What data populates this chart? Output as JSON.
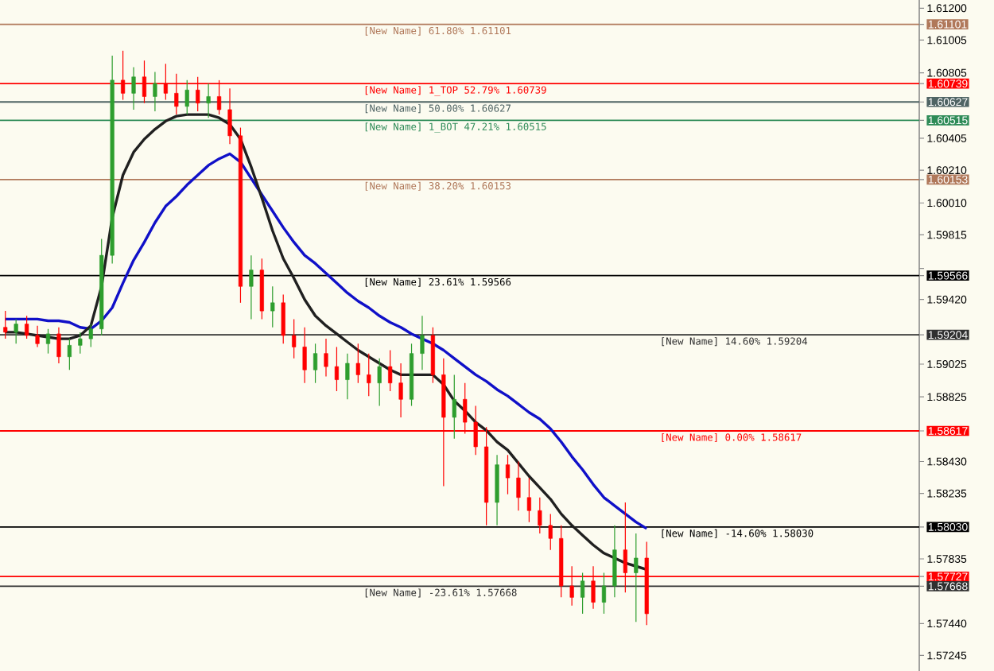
{
  "chart_data": {
    "type": "candlestick",
    "categories": [
      null,
      null,
      null,
      null,
      null,
      null,
      null,
      null,
      null,
      null,
      null,
      null,
      null,
      null,
      null,
      null,
      null,
      null,
      null,
      null,
      null,
      null,
      null,
      null,
      null,
      null,
      null,
      null,
      null,
      null,
      null,
      null,
      null,
      null,
      null,
      null,
      null,
      null,
      null,
      null,
      null,
      null,
      null,
      null,
      null,
      null,
      null,
      null,
      null,
      null,
      null,
      null,
      null,
      null,
      null,
      null,
      null,
      null,
      null,
      null,
      null,
      null,
      null,
      null,
      null,
      null,
      null,
      null,
      null,
      null,
      null,
      null,
      null,
      null,
      null,
      null,
      null,
      null,
      null,
      null,
      null,
      null,
      null,
      null,
      null,
      null
    ],
    "ohlc": [
      [
        1.5925,
        1.5935,
        1.5918,
        1.5922
      ],
      [
        1.5922,
        1.593,
        1.5915,
        1.5927
      ],
      [
        1.5927,
        1.5932,
        1.5918,
        1.592
      ],
      [
        1.592,
        1.5926,
        1.5913,
        1.5915
      ],
      [
        1.5915,
        1.5924,
        1.5909,
        1.5921
      ],
      [
        1.5921,
        1.5925,
        1.5903,
        1.5907
      ],
      [
        1.5907,
        1.5918,
        1.5899,
        1.5914
      ],
      [
        1.5914,
        1.5922,
        1.5909,
        1.5918
      ],
      [
        1.5918,
        1.5927,
        1.5913,
        1.5924
      ],
      [
        1.5924,
        1.5979,
        1.592,
        1.5969
      ],
      [
        1.5969,
        1.6091,
        1.5964,
        1.6076
      ],
      [
        1.6076,
        1.6094,
        1.6064,
        1.6068
      ],
      [
        1.6068,
        1.6084,
        1.6058,
        1.6078
      ],
      [
        1.6078,
        1.6088,
        1.6062,
        1.6066
      ],
      [
        1.6066,
        1.6081,
        1.6057,
        1.6074
      ],
      [
        1.6074,
        1.6086,
        1.6064,
        1.6068
      ],
      [
        1.6068,
        1.608,
        1.6055,
        1.606
      ],
      [
        1.606,
        1.6076,
        1.6055,
        1.607
      ],
      [
        1.607,
        1.6078,
        1.6057,
        1.6062
      ],
      [
        1.6062,
        1.6074,
        1.6053,
        1.6066
      ],
      [
        1.6066,
        1.6076,
        1.6055,
        1.6058
      ],
      [
        1.6058,
        1.6071,
        1.6037,
        1.6042
      ],
      [
        1.6042,
        1.6047,
        1.594,
        1.595
      ],
      [
        1.595,
        1.5969,
        1.593,
        1.596
      ],
      [
        1.596,
        1.5967,
        1.593,
        1.5935
      ],
      [
        1.5935,
        1.595,
        1.5925,
        1.594
      ],
      [
        1.594,
        1.5945,
        1.5915,
        1.592
      ],
      [
        1.592,
        1.593,
        1.5906,
        1.5913
      ],
      [
        1.5913,
        1.5925,
        1.5891,
        1.5899
      ],
      [
        1.5899,
        1.5915,
        1.5891,
        1.5909
      ],
      [
        1.5909,
        1.5918,
        1.5895,
        1.5901
      ],
      [
        1.5901,
        1.5913,
        1.5886,
        1.5893
      ],
      [
        1.5893,
        1.5909,
        1.5881,
        1.5903
      ],
      [
        1.5903,
        1.5915,
        1.5891,
        1.5896
      ],
      [
        1.5896,
        1.5909,
        1.5883,
        1.5891
      ],
      [
        1.5891,
        1.5906,
        1.5877,
        1.5901
      ],
      [
        1.5901,
        1.5911,
        1.5886,
        1.5891
      ],
      [
        1.5891,
        1.5903,
        1.587,
        1.5881
      ],
      [
        1.5881,
        1.5915,
        1.5877,
        1.5909
      ],
      [
        1.5909,
        1.5932,
        1.5899,
        1.592
      ],
      [
        1.592,
        1.5925,
        1.5891,
        1.5896
      ],
      [
        1.5896,
        1.5906,
        1.5828,
        1.587
      ],
      [
        1.587,
        1.5896,
        1.5857,
        1.5881
      ],
      [
        1.5881,
        1.5891,
        1.586,
        1.5867
      ],
      [
        1.5867,
        1.5877,
        1.5847,
        1.5852
      ],
      [
        1.5852,
        1.5864,
        1.5804,
        1.5818
      ],
      [
        1.5818,
        1.5847,
        1.5804,
        1.5841
      ],
      [
        1.5841,
        1.5847,
        1.5823,
        1.5833
      ],
      [
        1.5833,
        1.5843,
        1.5813,
        1.5821
      ],
      [
        1.5821,
        1.5833,
        1.5806,
        1.5813
      ],
      [
        1.5813,
        1.5821,
        1.5799,
        1.5804
      ],
      [
        1.5804,
        1.5811,
        1.5789,
        1.5796
      ],
      [
        1.5796,
        1.5804,
        1.576,
        1.5767
      ],
      [
        1.5767,
        1.5779,
        1.5755,
        1.576
      ],
      [
        1.576,
        1.5775,
        1.575,
        1.577
      ],
      [
        1.577,
        1.5779,
        1.5753,
        1.5757
      ],
      [
        1.5757,
        1.5775,
        1.575,
        1.5767
      ],
      [
        1.5767,
        1.5804,
        1.576,
        1.5789
      ],
      [
        1.5789,
        1.5818,
        1.5763,
        1.5775
      ],
      [
        1.5775,
        1.5799,
        1.5745,
        1.5784
      ],
      [
        1.5784,
        1.5794,
        1.5743,
        1.575
      ],
      null,
      null,
      null,
      null,
      null,
      null,
      null,
      null,
      null,
      null,
      null,
      null,
      null,
      null,
      null,
      null,
      null,
      null,
      null,
      null,
      null,
      null,
      null,
      null,
      null
    ],
    "colors": [
      "#ff0000",
      "#2e9e2e",
      "#ff0000",
      "#ff0000",
      "#2e9e2e",
      "#ff0000",
      "#2e9e2e",
      "#2e9e2e",
      "#2e9e2e",
      "#2e9e2e",
      "#2e9e2e",
      "#ff0000",
      "#2e9e2e",
      "#ff0000",
      "#2e9e2e",
      "#ff0000",
      "#ff0000",
      "#2e9e2e",
      "#ff0000",
      "#2e9e2e",
      "#ff0000",
      "#ff0000",
      "#ff0000",
      "#2e9e2e",
      "#ff0000",
      "#2e9e2e",
      "#ff0000",
      "#ff0000",
      "#ff0000",
      "#2e9e2e",
      "#ff0000",
      "#ff0000",
      "#2e9e2e",
      "#ff0000",
      "#ff0000",
      "#2e9e2e",
      "#ff0000",
      "#ff0000",
      "#2e9e2e",
      "#2e9e2e",
      "#ff0000",
      "#ff0000",
      "#2e9e2e",
      "#ff0000",
      "#ff0000",
      "#ff0000",
      "#2e9e2e",
      "#ff0000",
      "#ff0000",
      "#ff0000",
      "#ff0000",
      "#ff0000",
      "#ff0000",
      "#ff0000",
      "#2e9e2e",
      "#ff0000",
      "#2e9e2e",
      "#2e9e2e",
      "#ff0000",
      "#2e9e2e",
      "#ff0000",
      null,
      null,
      null,
      null,
      null,
      null,
      null,
      null,
      null,
      null,
      null,
      null,
      null,
      null,
      null,
      null,
      null,
      null,
      null,
      null,
      null,
      null,
      null,
      null,
      null
    ],
    "series": [
      {
        "type": "line",
        "color": "#1010c8",
        "values": [
          1.593,
          1.593,
          1.593,
          1.593,
          1.5929,
          1.5929,
          1.5928,
          1.5925,
          1.5924,
          1.5929,
          1.5937,
          1.5952,
          1.5966,
          1.5977,
          1.5989,
          1.5999,
          1.6005,
          1.6012,
          1.6018,
          1.6024,
          1.6028,
          1.6031,
          1.6026,
          1.6016,
          1.6006,
          1.5996,
          1.5986,
          1.5977,
          1.5969,
          1.5964,
          1.5958,
          1.5952,
          1.5946,
          1.5941,
          1.5937,
          1.5932,
          1.5928,
          1.5925,
          1.5921,
          1.5918,
          1.5915,
          1.5911,
          1.5906,
          1.5901,
          1.5896,
          1.5892,
          1.5887,
          1.5883,
          1.5878,
          1.5873,
          1.5869,
          1.5863,
          1.5855,
          1.5846,
          1.5838,
          1.5829,
          1.5821,
          1.5816,
          1.5811,
          1.5806,
          1.5802,
          null,
          null,
          null,
          null,
          null,
          null,
          null,
          null,
          null,
          null,
          null,
          null,
          null,
          null,
          null,
          null,
          null,
          null,
          null,
          null,
          null,
          null,
          null,
          null,
          null
        ]
      },
      {
        "type": "line",
        "color": "#202020",
        "values": [
          1.5922,
          1.5922,
          1.5921,
          1.592,
          1.5919,
          1.5918,
          1.5918,
          1.592,
          1.5926,
          1.595,
          1.5992,
          1.6018,
          1.6032,
          1.604,
          1.6046,
          1.6051,
          1.6054,
          1.6055,
          1.6055,
          1.6055,
          1.6053,
          1.6049,
          1.604,
          1.6023,
          1.6004,
          1.5984,
          1.5967,
          1.5955,
          1.5942,
          1.5932,
          1.5926,
          1.5921,
          1.5916,
          1.5911,
          1.5907,
          1.5903,
          1.5899,
          1.5896,
          1.5896,
          1.5896,
          1.5896,
          1.589,
          1.588,
          1.5874,
          1.5867,
          1.5862,
          1.5855,
          1.585,
          1.5842,
          1.5834,
          1.5827,
          1.582,
          1.5811,
          1.5804,
          1.5798,
          1.5792,
          1.5787,
          1.5784,
          1.5781,
          1.5779,
          1.5777,
          null,
          null,
          null,
          null,
          null,
          null,
          null,
          null,
          null,
          null,
          null,
          null,
          null,
          null,
          null,
          null,
          null,
          null,
          null,
          null,
          null,
          null,
          null,
          null,
          null
        ]
      }
    ],
    "ylim": [
      1.5715,
      1.6125
    ],
    "yticks": [
      {
        "value": 1.612,
        "label": "1.61200"
      },
      1.61101,
      1.61005,
      1.60805,
      1.60739,
      1.60627,
      1.60515,
      1.60405,
      {
        "value": 1.6021,
        "label": "1.60210"
      },
      1.60153,
      {
        "value": 1.6001,
        "label": "1.60010"
      },
      1.59815,
      {
        "value": 1.5961,
        "label": null
      },
      1.59566,
      {
        "value": 1.5942,
        "label": "1.59420"
      },
      1.59204,
      1.59025,
      1.58825,
      1.58617,
      {
        "value": 1.5843,
        "label": "1.58430"
      },
      1.58235,
      {
        "value": 1.5803,
        "label": "1.58030"
      },
      1.57835,
      1.57727,
      1.57668,
      {
        "value": 1.5744,
        "label": "1.57440"
      },
      1.57245
    ],
    "ref_lines": [
      {
        "axis": "y",
        "value": 1.61101,
        "label": "[New Name] 61.80%  1.61101",
        "color": "#b0785a"
      },
      {
        "axis": "y",
        "value": 1.60739,
        "label": "[New Name] 1_TOP 52.79%  1.60739",
        "color": "#ff0000"
      },
      {
        "axis": "y",
        "value": 1.60627,
        "label": "[New Name] 50.00%  1.60627",
        "color": "#4f6464"
      },
      {
        "axis": "y",
        "value": 1.60515,
        "label": "[New Name] 1_BOT 47.21%  1.60515",
        "color": "#2e8b57"
      },
      {
        "axis": "y",
        "value": 1.60153,
        "label": "[New Name] 38.20%  1.60153",
        "color": "#b0785a"
      },
      {
        "axis": "y",
        "value": 1.59566,
        "label": "[New Name] 23.61%  1.59566",
        "color": "#000000"
      },
      {
        "axis": "y",
        "value": 1.59204,
        "label": "[New Name] 14.60%  1.59204",
        "color": "#303030"
      },
      {
        "axis": "y",
        "value": 1.58617,
        "label": "[New Name] 0.00%  1.58617",
        "color": "#ff0000"
      },
      {
        "axis": "y",
        "value": 1.5803,
        "label": "[New Name] -14.60%  1.58030",
        "color": "#000000"
      },
      {
        "axis": "y",
        "value": 1.57668,
        "label": "[New Name] -23.61%  1.57668",
        "color": "#303030"
      },
      {
        "axis": "y",
        "value": 1.57727,
        "color": "#ff0000"
      }
    ],
    "tick_labels": "y"
  }
}
